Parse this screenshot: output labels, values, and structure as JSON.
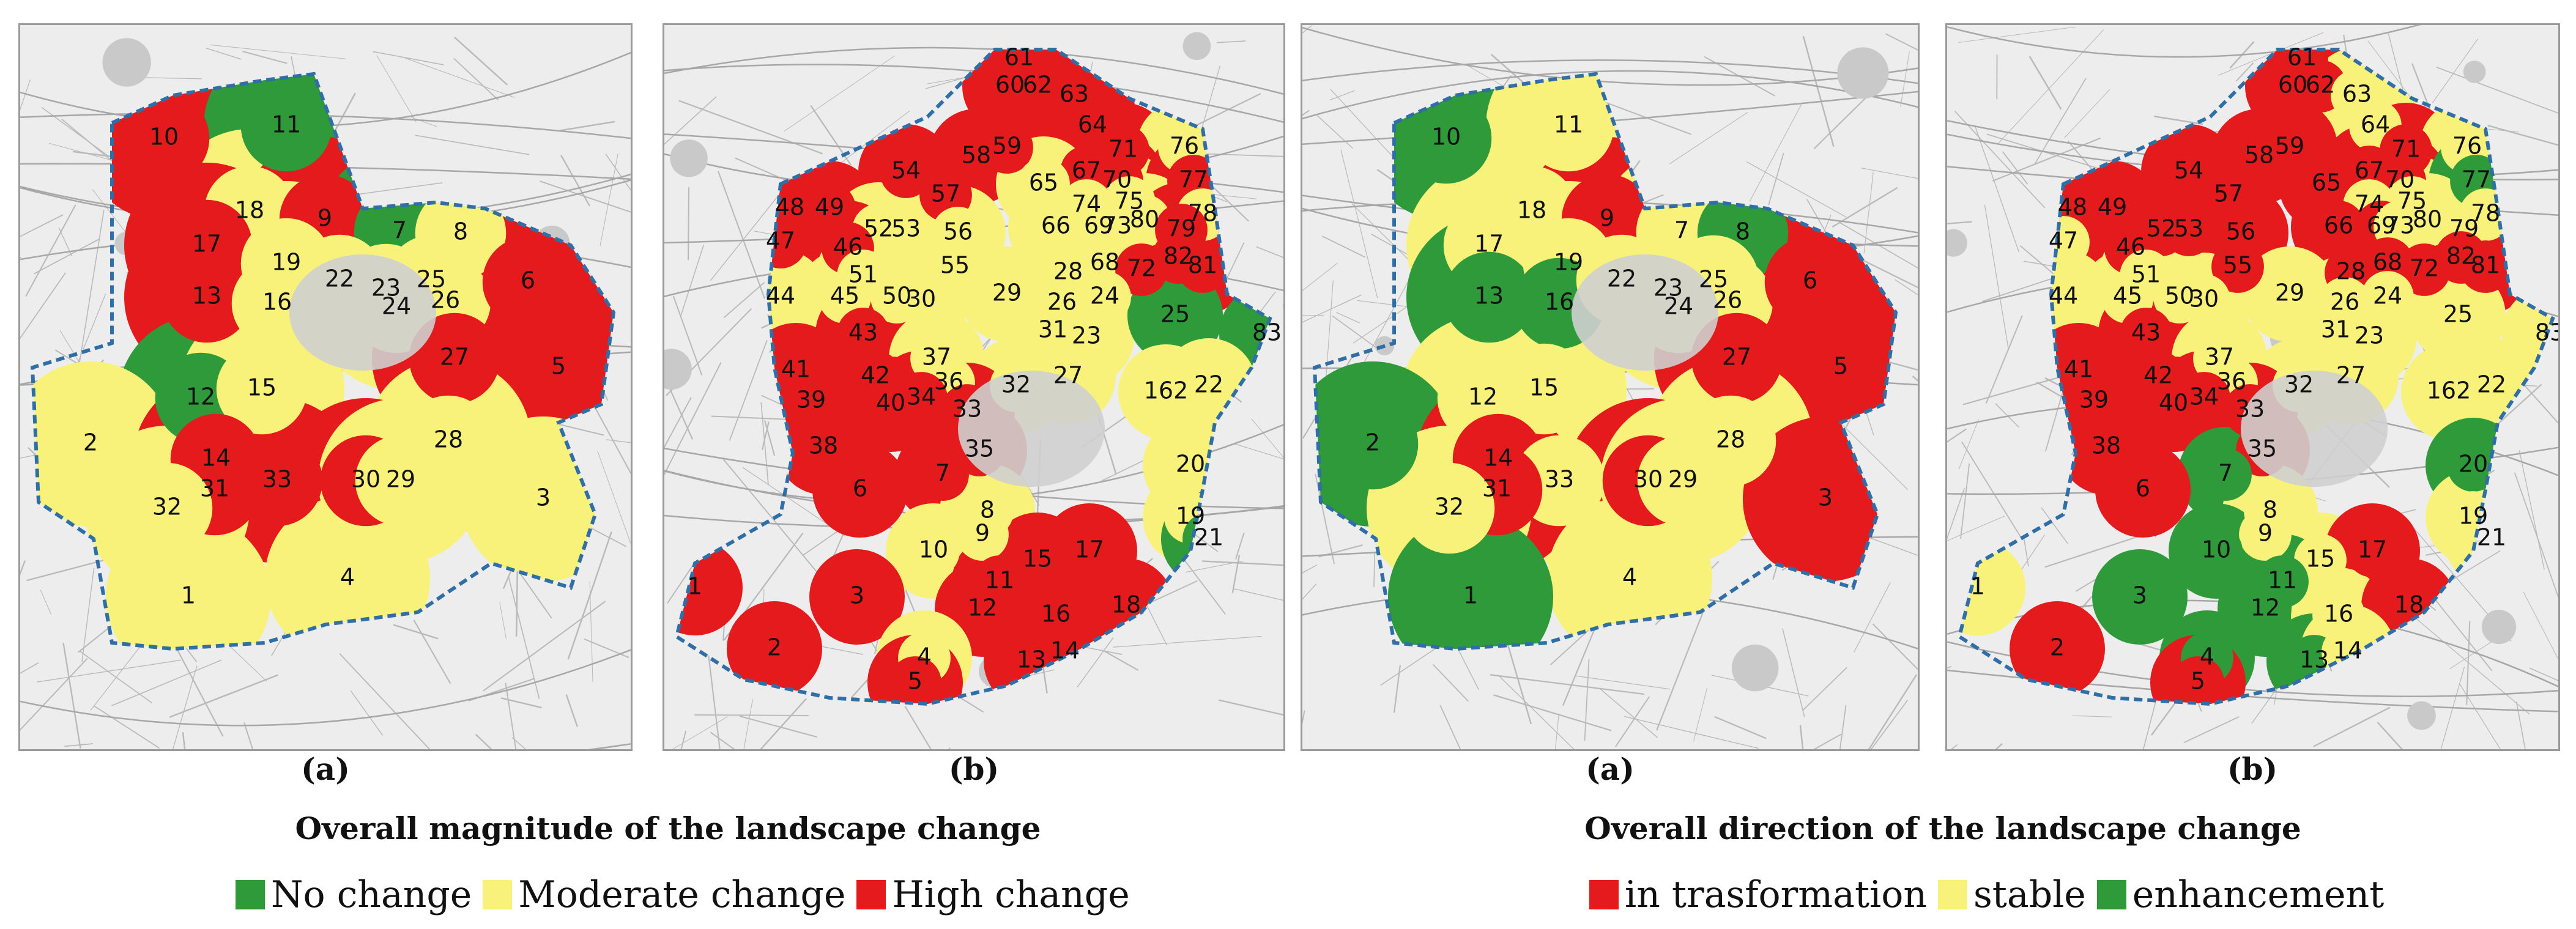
{
  "colors": {
    "green": "#2e9a3a",
    "yellow": "#f8f27a",
    "red": "#e41a1c",
    "boundary": "#2f6ea6",
    "basemap": "#ededed"
  },
  "panels": [
    {
      "caption": "(a)",
      "zones": [
        {
          "id": "10",
          "color": "red"
        },
        {
          "id": "11",
          "color": "green"
        },
        {
          "id": "18",
          "color": "yellow"
        },
        {
          "id": "9",
          "color": "red"
        },
        {
          "id": "17",
          "color": "red"
        },
        {
          "id": "13",
          "color": "red"
        },
        {
          "id": "19",
          "color": "yellow"
        },
        {
          "id": "16",
          "color": "yellow"
        },
        {
          "id": "7",
          "color": "green"
        },
        {
          "id": "8",
          "color": "yellow"
        },
        {
          "id": "22",
          "color": "yellow"
        },
        {
          "id": "23",
          "color": "yellow"
        },
        {
          "id": "25",
          "color": "yellow"
        },
        {
          "id": "24",
          "color": "yellow"
        },
        {
          "id": "26",
          "color": "yellow"
        },
        {
          "id": "6",
          "color": "red"
        },
        {
          "id": "27",
          "color": "red"
        },
        {
          "id": "5",
          "color": "red"
        },
        {
          "id": "12",
          "color": "green"
        },
        {
          "id": "15",
          "color": "yellow"
        },
        {
          "id": "2",
          "color": "yellow"
        },
        {
          "id": "28",
          "color": "yellow"
        },
        {
          "id": "14",
          "color": "red"
        },
        {
          "id": "33",
          "color": "red"
        },
        {
          "id": "31",
          "color": "red"
        },
        {
          "id": "30",
          "color": "red"
        },
        {
          "id": "29",
          "color": "yellow"
        },
        {
          "id": "32",
          "color": "yellow"
        },
        {
          "id": "3",
          "color": "yellow"
        },
        {
          "id": "4",
          "color": "yellow"
        },
        {
          "id": "1",
          "color": "yellow"
        }
      ]
    },
    {
      "caption": "(b)",
      "zones": [
        {
          "id": "61",
          "color": "red"
        },
        {
          "id": "60",
          "color": "red"
        },
        {
          "id": "62",
          "color": "red"
        },
        {
          "id": "63",
          "color": "red"
        },
        {
          "id": "64",
          "color": "red"
        },
        {
          "id": "59",
          "color": "red"
        },
        {
          "id": "67",
          "color": "red"
        },
        {
          "id": "71",
          "color": "red"
        },
        {
          "id": "76",
          "color": "yellow"
        },
        {
          "id": "54",
          "color": "red"
        },
        {
          "id": "58",
          "color": "red"
        },
        {
          "id": "65",
          "color": "yellow"
        },
        {
          "id": "70",
          "color": "red"
        },
        {
          "id": "75",
          "color": "yellow"
        },
        {
          "id": "77",
          "color": "red"
        },
        {
          "id": "48",
          "color": "red"
        },
        {
          "id": "49",
          "color": "red"
        },
        {
          "id": "57",
          "color": "red"
        },
        {
          "id": "74",
          "color": "yellow"
        },
        {
          "id": "80",
          "color": "yellow"
        },
        {
          "id": "78",
          "color": "yellow"
        },
        {
          "id": "47",
          "color": "red"
        },
        {
          "id": "52",
          "color": "yellow"
        },
        {
          "id": "53",
          "color": "yellow"
        },
        {
          "id": "56",
          "color": "yellow"
        },
        {
          "id": "66",
          "color": "yellow"
        },
        {
          "id": "69",
          "color": "yellow"
        },
        {
          "id": "73",
          "color": "yellow"
        },
        {
          "id": "79",
          "color": "red"
        },
        {
          "id": "46",
          "color": "red"
        },
        {
          "id": "51",
          "color": "yellow"
        },
        {
          "id": "55",
          "color": "yellow"
        },
        {
          "id": "28",
          "color": "yellow"
        },
        {
          "id": "68",
          "color": "yellow"
        },
        {
          "id": "72",
          "color": "red"
        },
        {
          "id": "82",
          "color": "red"
        },
        {
          "id": "81",
          "color": "red"
        },
        {
          "id": "44",
          "color": "yellow"
        },
        {
          "id": "45",
          "color": "yellow"
        },
        {
          "id": "50",
          "color": "yellow"
        },
        {
          "id": "30",
          "color": "yellow"
        },
        {
          "id": "29",
          "color": "yellow"
        },
        {
          "id": "26",
          "color": "yellow"
        },
        {
          "id": "24",
          "color": "yellow"
        },
        {
          "id": "43",
          "color": "red"
        },
        {
          "id": "31",
          "color": "yellow"
        },
        {
          "id": "23",
          "color": "yellow"
        },
        {
          "id": "25",
          "color": "green"
        },
        {
          "id": "83",
          "color": "green"
        },
        {
          "id": "41",
          "color": "red"
        },
        {
          "id": "42",
          "color": "red"
        },
        {
          "id": "37",
          "color": "yellow"
        },
        {
          "id": "36",
          "color": "yellow"
        },
        {
          "id": "32",
          "color": "yellow"
        },
        {
          "id": "27",
          "color": "yellow"
        },
        {
          "id": "162",
          "color": "yellow"
        },
        {
          "id": "22",
          "color": "yellow"
        },
        {
          "id": "39",
          "color": "red"
        },
        {
          "id": "40",
          "color": "red"
        },
        {
          "id": "34",
          "color": "red"
        },
        {
          "id": "33",
          "color": "red"
        },
        {
          "id": "38",
          "color": "red"
        },
        {
          "id": "35",
          "color": "red"
        },
        {
          "id": "7",
          "color": "red"
        },
        {
          "id": "20",
          "color": "yellow"
        },
        {
          "id": "6",
          "color": "red"
        },
        {
          "id": "8",
          "color": "yellow"
        },
        {
          "id": "19",
          "color": "yellow"
        },
        {
          "id": "9",
          "color": "yellow"
        },
        {
          "id": "21",
          "color": "green"
        },
        {
          "id": "10",
          "color": "yellow"
        },
        {
          "id": "15",
          "color": "red"
        },
        {
          "id": "17",
          "color": "red"
        },
        {
          "id": "11",
          "color": "red"
        },
        {
          "id": "1",
          "color": "red"
        },
        {
          "id": "3",
          "color": "red"
        },
        {
          "id": "12",
          "color": "red"
        },
        {
          "id": "16",
          "color": "red"
        },
        {
          "id": "18",
          "color": "red"
        },
        {
          "id": "2",
          "color": "red"
        },
        {
          "id": "4",
          "color": "yellow"
        },
        {
          "id": "13",
          "color": "red"
        },
        {
          "id": "14",
          "color": "red"
        },
        {
          "id": "5",
          "color": "red"
        }
      ]
    },
    {
      "caption": "(a)",
      "zones": [
        {
          "id": "10",
          "color": "green"
        },
        {
          "id": "11",
          "color": "yellow"
        },
        {
          "id": "18",
          "color": "yellow"
        },
        {
          "id": "9",
          "color": "red"
        },
        {
          "id": "17",
          "color": "yellow"
        },
        {
          "id": "13",
          "color": "green"
        },
        {
          "id": "19",
          "color": "yellow"
        },
        {
          "id": "16",
          "color": "green"
        },
        {
          "id": "7",
          "color": "yellow"
        },
        {
          "id": "8",
          "color": "green"
        },
        {
          "id": "22",
          "color": "yellow"
        },
        {
          "id": "23",
          "color": "yellow"
        },
        {
          "id": "25",
          "color": "yellow"
        },
        {
          "id": "24",
          "color": "yellow"
        },
        {
          "id": "26",
          "color": "yellow"
        },
        {
          "id": "6",
          "color": "red"
        },
        {
          "id": "27",
          "color": "red"
        },
        {
          "id": "5",
          "color": "red"
        },
        {
          "id": "12",
          "color": "yellow"
        },
        {
          "id": "15",
          "color": "yellow"
        },
        {
          "id": "2",
          "color": "green"
        },
        {
          "id": "28",
          "color": "yellow"
        },
        {
          "id": "14",
          "color": "red"
        },
        {
          "id": "33",
          "color": "yellow"
        },
        {
          "id": "31",
          "color": "red"
        },
        {
          "id": "30",
          "color": "red"
        },
        {
          "id": "29",
          "color": "yellow"
        },
        {
          "id": "32",
          "color": "yellow"
        },
        {
          "id": "3",
          "color": "red"
        },
        {
          "id": "4",
          "color": "yellow"
        },
        {
          "id": "1",
          "color": "green"
        }
      ]
    },
    {
      "caption": "(b)",
      "zones": [
        {
          "id": "61",
          "color": "red"
        },
        {
          "id": "60",
          "color": "red"
        },
        {
          "id": "62",
          "color": "red"
        },
        {
          "id": "63",
          "color": "yellow"
        },
        {
          "id": "64",
          "color": "yellow"
        },
        {
          "id": "59",
          "color": "red"
        },
        {
          "id": "67",
          "color": "red"
        },
        {
          "id": "71",
          "color": "red"
        },
        {
          "id": "76",
          "color": "yellow"
        },
        {
          "id": "54",
          "color": "red"
        },
        {
          "id": "58",
          "color": "red"
        },
        {
          "id": "65",
          "color": "red"
        },
        {
          "id": "70",
          "color": "red"
        },
        {
          "id": "75",
          "color": "yellow"
        },
        {
          "id": "77",
          "color": "green"
        },
        {
          "id": "48",
          "color": "red"
        },
        {
          "id": "49",
          "color": "red"
        },
        {
          "id": "57",
          "color": "red"
        },
        {
          "id": "74",
          "color": "yellow"
        },
        {
          "id": "80",
          "color": "yellow"
        },
        {
          "id": "78",
          "color": "yellow"
        },
        {
          "id": "47",
          "color": "yellow"
        },
        {
          "id": "52",
          "color": "red"
        },
        {
          "id": "53",
          "color": "red"
        },
        {
          "id": "56",
          "color": "red"
        },
        {
          "id": "66",
          "color": "red"
        },
        {
          "id": "69",
          "color": "red"
        },
        {
          "id": "73",
          "color": "yellow"
        },
        {
          "id": "79",
          "color": "yellow"
        },
        {
          "id": "46",
          "color": "red"
        },
        {
          "id": "51",
          "color": "yellow"
        },
        {
          "id": "55",
          "color": "red"
        },
        {
          "id": "28",
          "color": "red"
        },
        {
          "id": "68",
          "color": "red"
        },
        {
          "id": "72",
          "color": "red"
        },
        {
          "id": "82",
          "color": "red"
        },
        {
          "id": "81",
          "color": "red"
        },
        {
          "id": "44",
          "color": "yellow"
        },
        {
          "id": "45",
          "color": "yellow"
        },
        {
          "id": "50",
          "color": "yellow"
        },
        {
          "id": "30",
          "color": "yellow"
        },
        {
          "id": "29",
          "color": "yellow"
        },
        {
          "id": "26",
          "color": "yellow"
        },
        {
          "id": "24",
          "color": "yellow"
        },
        {
          "id": "43",
          "color": "red"
        },
        {
          "id": "31",
          "color": "yellow"
        },
        {
          "id": "23",
          "color": "yellow"
        },
        {
          "id": "25",
          "color": "yellow"
        },
        {
          "id": "83",
          "color": "yellow"
        },
        {
          "id": "41",
          "color": "red"
        },
        {
          "id": "42",
          "color": "red"
        },
        {
          "id": "37",
          "color": "yellow"
        },
        {
          "id": "36",
          "color": "yellow"
        },
        {
          "id": "32",
          "color": "yellow"
        },
        {
          "id": "27",
          "color": "yellow"
        },
        {
          "id": "162",
          "color": "yellow"
        },
        {
          "id": "22",
          "color": "yellow"
        },
        {
          "id": "39",
          "color": "red"
        },
        {
          "id": "40",
          "color": "red"
        },
        {
          "id": "34",
          "color": "red"
        },
        {
          "id": "33",
          "color": "red"
        },
        {
          "id": "38",
          "color": "red"
        },
        {
          "id": "35",
          "color": "red"
        },
        {
          "id": "7",
          "color": "green"
        },
        {
          "id": "20",
          "color": "green"
        },
        {
          "id": "6",
          "color": "red"
        },
        {
          "id": "8",
          "color": "yellow"
        },
        {
          "id": "19",
          "color": "yellow"
        },
        {
          "id": "9",
          "color": "yellow"
        },
        {
          "id": "21",
          "color": "yellow"
        },
        {
          "id": "10",
          "color": "green"
        },
        {
          "id": "15",
          "color": "yellow"
        },
        {
          "id": "17",
          "color": "red"
        },
        {
          "id": "11",
          "color": "green"
        },
        {
          "id": "1",
          "color": "yellow"
        },
        {
          "id": "3",
          "color": "green"
        },
        {
          "id": "12",
          "color": "green"
        },
        {
          "id": "16",
          "color": "yellow"
        },
        {
          "id": "18",
          "color": "red"
        },
        {
          "id": "2",
          "color": "red"
        },
        {
          "id": "4",
          "color": "green"
        },
        {
          "id": "13",
          "color": "green"
        },
        {
          "id": "14",
          "color": "yellow"
        },
        {
          "id": "5",
          "color": "red"
        }
      ]
    }
  ],
  "legends": [
    {
      "title": "Overall magnitude of the landscape change",
      "items": [
        {
          "label": "No change",
          "color": "green"
        },
        {
          "label": "Moderate change",
          "color": "yellow"
        },
        {
          "label": "High change",
          "color": "red"
        }
      ]
    },
    {
      "title": "Overall direction of the landscape change",
      "items": [
        {
          "label": "in trasformation",
          "color": "red"
        },
        {
          "label": "stable",
          "color": "yellow"
        },
        {
          "label": "enhancement",
          "color": "green"
        }
      ]
    }
  ]
}
